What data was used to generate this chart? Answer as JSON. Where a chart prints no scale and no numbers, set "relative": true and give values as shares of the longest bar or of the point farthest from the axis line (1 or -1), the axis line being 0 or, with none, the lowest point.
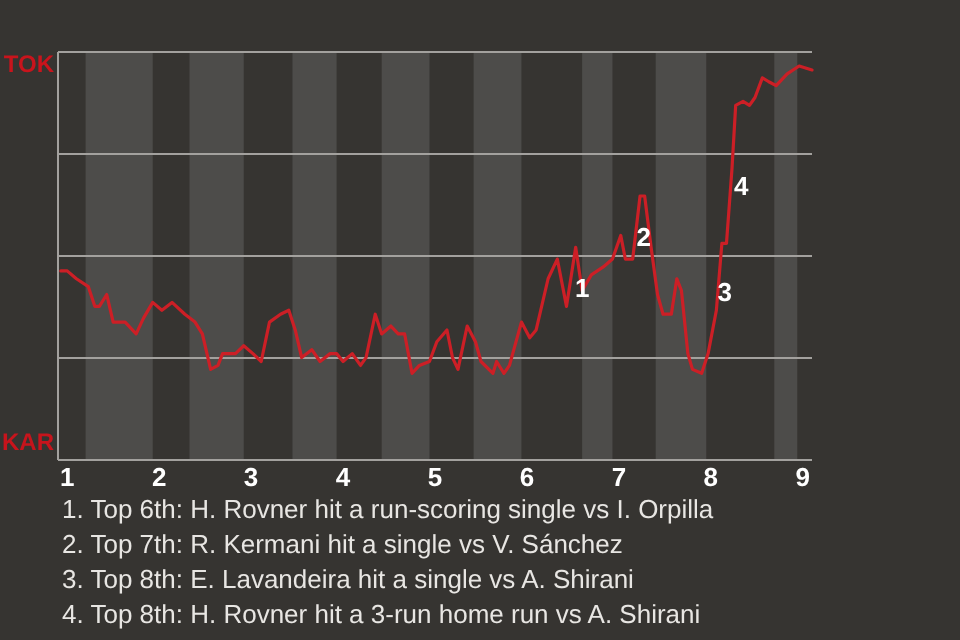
{
  "chart_data": {
    "type": "line",
    "relative": true,
    "x": [
      0.93,
      1.0,
      1.1,
      1.23,
      1.3,
      1.35,
      1.43,
      1.5,
      1.63,
      1.75,
      1.83,
      1.93,
      2.03,
      2.14,
      2.28,
      2.39,
      2.47,
      2.56,
      2.64,
      2.69,
      2.83,
      2.92,
      3.02,
      3.11,
      3.2,
      3.32,
      3.41,
      3.48,
      3.55,
      3.66,
      3.75,
      3.86,
      3.93,
      4.0,
      4.1,
      4.19,
      4.25,
      4.35,
      4.42,
      4.52,
      4.6,
      4.67,
      4.75,
      4.83,
      4.94,
      5.02,
      5.13,
      5.19,
      5.25,
      5.35,
      5.44,
      5.5,
      5.63,
      5.67,
      5.75,
      5.81,
      5.94,
      6.03,
      6.1,
      6.23,
      6.33,
      6.43,
      6.53,
      6.6,
      6.7,
      6.83,
      6.93,
      7.02,
      7.07,
      7.15,
      7.23,
      7.28,
      7.35,
      7.42,
      7.48,
      7.57,
      7.63,
      7.68,
      7.75,
      7.8,
      7.9,
      7.97,
      8.06,
      8.12,
      8.17,
      8.23,
      8.27,
      8.35,
      8.42,
      8.48,
      8.56,
      8.63,
      8.71,
      8.83,
      8.96,
      9.1
    ],
    "series": [
      {
        "color": "#cc1f26",
        "values": [
          0.48,
          0.48,
          0.46,
          0.44,
          0.39,
          0.39,
          0.42,
          0.35,
          0.35,
          0.32,
          0.36,
          0.4,
          0.38,
          0.4,
          0.37,
          0.35,
          0.32,
          0.23,
          0.24,
          0.27,
          0.27,
          0.29,
          0.27,
          0.25,
          0.35,
          0.37,
          0.38,
          0.33,
          0.26,
          0.28,
          0.25,
          0.27,
          0.27,
          0.25,
          0.27,
          0.24,
          0.26,
          0.37,
          0.32,
          0.34,
          0.32,
          0.32,
          0.22,
          0.24,
          0.25,
          0.3,
          0.33,
          0.26,
          0.23,
          0.34,
          0.3,
          0.25,
          0.22,
          0.25,
          0.22,
          0.24,
          0.35,
          0.31,
          0.33,
          0.46,
          0.51,
          0.39,
          0.54,
          0.43,
          0.47,
          0.49,
          0.51,
          0.57,
          0.51,
          0.51,
          0.67,
          0.67,
          0.54,
          0.42,
          0.37,
          0.37,
          0.46,
          0.43,
          0.27,
          0.23,
          0.22,
          0.27,
          0.38,
          0.55,
          0.55,
          0.74,
          0.9,
          0.91,
          0.9,
          0.92,
          0.97,
          0.96,
          0.95,
          0.98,
          1,
          0.99
        ]
      }
    ],
    "xlim": [
      0.9,
      9.1
    ],
    "xticks": [
      1,
      2,
      3,
      4,
      5,
      6,
      7,
      8,
      9
    ],
    "grid": "y",
    "bands": [
      {
        "axis": "x",
        "from": 1.2,
        "to": 1.93,
        "color": "#4d4c4a"
      },
      {
        "axis": "x",
        "from": 2.33,
        "to": 2.92,
        "color": "#4d4c4a"
      },
      {
        "axis": "x",
        "from": 3.45,
        "to": 3.93,
        "color": "#4d4c4a"
      },
      {
        "axis": "x",
        "from": 4.42,
        "to": 4.94,
        "color": "#4d4c4a"
      },
      {
        "axis": "x",
        "from": 5.42,
        "to": 5.94,
        "color": "#4d4c4a"
      },
      {
        "axis": "x",
        "from": 6.6,
        "to": 6.93,
        "color": "#4d4c4a"
      },
      {
        "axis": "x",
        "from": 7.4,
        "to": 7.95,
        "color": "#4d4c4a"
      },
      {
        "axis": "x",
        "from": 8.69,
        "to": 8.94,
        "color": "#4d4c4a"
      }
    ],
    "annotations": [
      {
        "text": "1",
        "x": 6.6,
        "y": 0.43
      },
      {
        "text": "2",
        "x": 7.27,
        "y": 0.56
      },
      {
        "text": "3",
        "x": 8.15,
        "y": 0.42
      },
      {
        "text": "4",
        "x": 8.33,
        "y": 0.69
      },
      "TOK",
      "KAR",
      "1. Top 6th: H. Rovner hit a run-scoring single vs I. Orpilla",
      "2. Top 7th: R. Kermani hit a single vs V. Sánchez",
      "3. Top 8th: E. Lavandeira hit a single vs A. Shirani",
      "4. Top 8th: H. Rovner hit a 3-run home run vs A. Shirani"
    ]
  }
}
